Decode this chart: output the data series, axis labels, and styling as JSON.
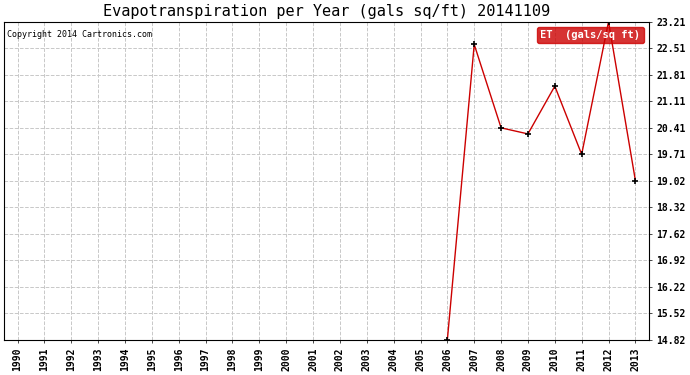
{
  "title": "Evapotranspiration per Year (gals sq/ft) 20141109",
  "copyright": "Copyright 2014 Cartronics.com",
  "legend_label": "ET  (gals/sq ft)",
  "years": [
    1990,
    1991,
    1992,
    1993,
    1994,
    1995,
    1996,
    1997,
    1998,
    1999,
    2000,
    2001,
    2002,
    2003,
    2004,
    2005,
    2006,
    2007,
    2008,
    2009,
    2010,
    2011,
    2012,
    2013
  ],
  "values": [
    null,
    null,
    null,
    null,
    null,
    null,
    null,
    null,
    null,
    null,
    null,
    null,
    null,
    null,
    null,
    null,
    14.82,
    22.61,
    20.41,
    20.25,
    21.51,
    19.71,
    23.21,
    19.02
  ],
  "line_color": "#cc0000",
  "marker": "+",
  "marker_color": "#000000",
  "bg_color": "#ffffff",
  "plot_bg_color": "#ffffff",
  "grid_color": "#c8c8c8",
  "yticks": [
    14.82,
    15.52,
    16.22,
    16.92,
    17.62,
    18.32,
    19.02,
    19.71,
    20.41,
    21.11,
    21.81,
    22.51,
    23.21
  ],
  "ylim": [
    14.82,
    23.21
  ],
  "xlim": [
    1989.5,
    2013.5
  ],
  "title_fontsize": 11,
  "tick_fontsize": 7,
  "copyright_fontsize": 6,
  "legend_bg": "#cc0000",
  "legend_text_color": "#ffffff",
  "legend_fontsize": 7.5
}
